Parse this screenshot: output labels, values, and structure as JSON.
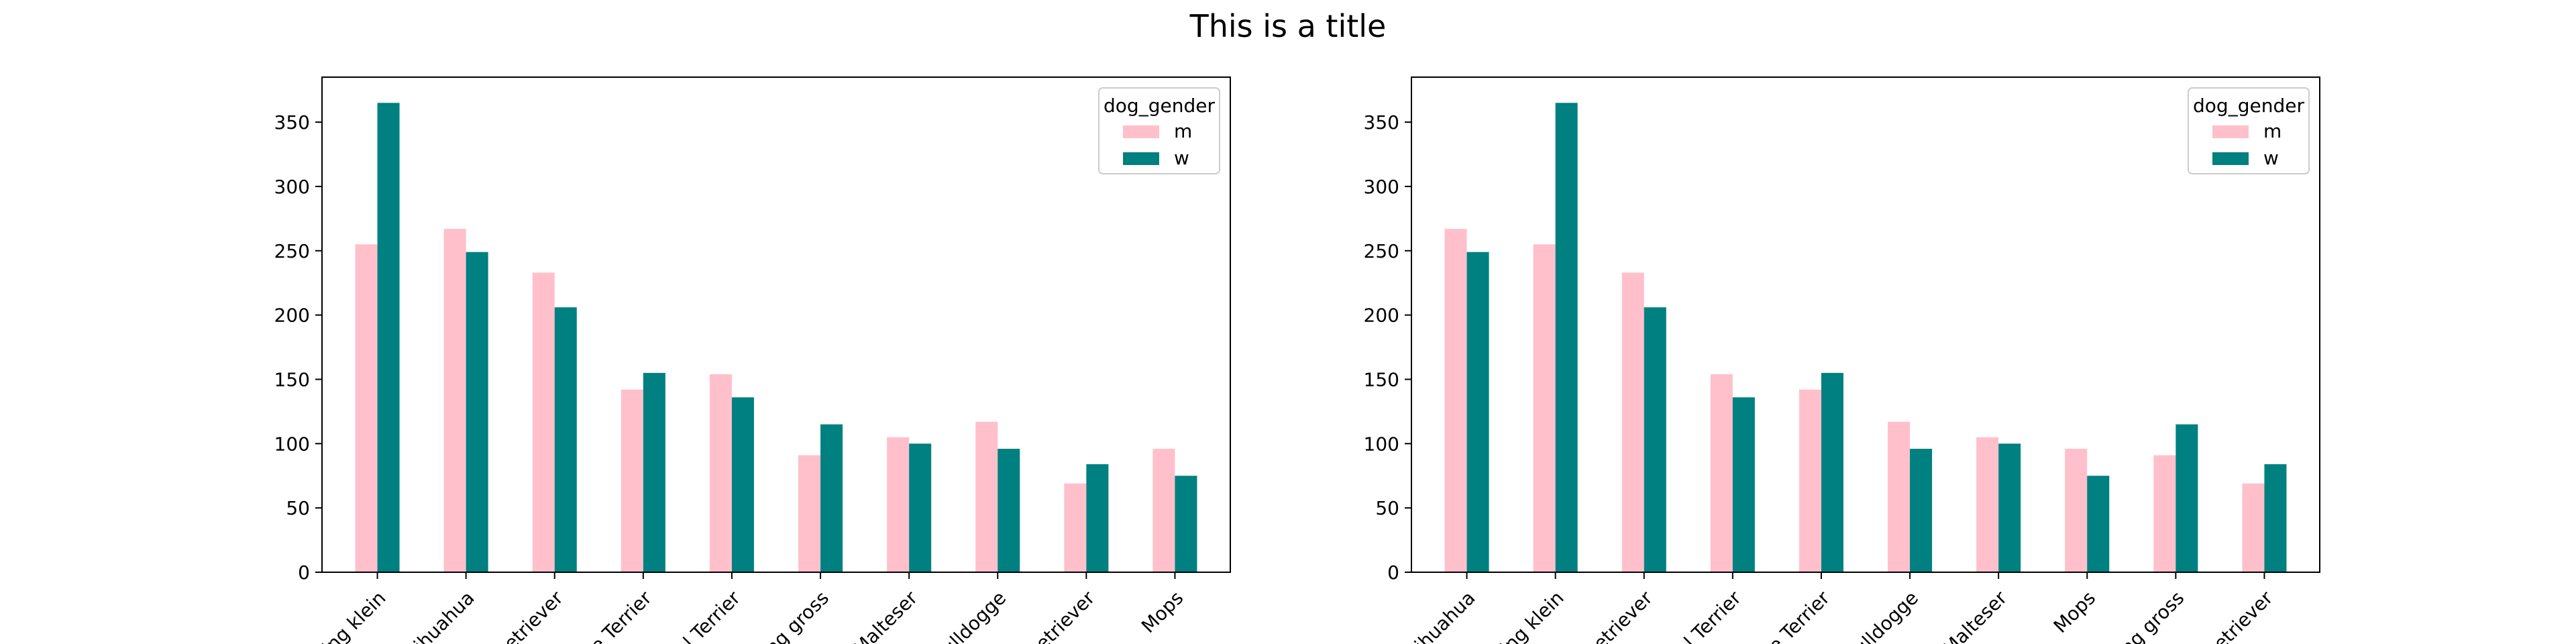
{
  "figure": {
    "title": "This is a title"
  },
  "chart_data": [
    {
      "type": "bar",
      "title": "",
      "xlabel": "",
      "ylabel": "",
      "ylim": [
        0,
        385
      ],
      "yticks": [
        0,
        50,
        100,
        150,
        200,
        250,
        300,
        350
      ],
      "categories": [
        "ling klein",
        "Chihuahua",
        "Retriever",
        "ire Terrier",
        "cel Terrier",
        "ling gross",
        "Malteser",
        "Bulldogge",
        "Retriever",
        "Mops"
      ],
      "legend": {
        "title": "dog_gender",
        "position": "top-right"
      },
      "series": [
        {
          "name": "m",
          "color": "#ffc0cb",
          "values": [
            255,
            267,
            233,
            142,
            154,
            91,
            105,
            117,
            69,
            96
          ]
        },
        {
          "name": "w",
          "color": "#008080",
          "values": [
            365,
            249,
            206,
            155,
            136,
            115,
            100,
            96,
            84,
            75
          ]
        }
      ]
    },
    {
      "type": "bar",
      "title": "",
      "xlabel": "",
      "ylabel": "",
      "ylim": [
        0,
        385
      ],
      "yticks": [
        0,
        50,
        100,
        150,
        200,
        250,
        300,
        350
      ],
      "categories": [
        "Chihuahua",
        "ling klein",
        "Retriever",
        "cel Terrier",
        "ire Terrier",
        "Bulldogge",
        "Malteser",
        "Mops",
        "ling gross",
        "Retriever"
      ],
      "legend": {
        "title": "dog_gender",
        "position": "top-right"
      },
      "series": [
        {
          "name": "m",
          "color": "#ffc0cb",
          "values": [
            267,
            255,
            233,
            154,
            142,
            117,
            105,
            96,
            91,
            69
          ]
        },
        {
          "name": "w",
          "color": "#008080",
          "values": [
            249,
            365,
            206,
            136,
            155,
            96,
            100,
            75,
            115,
            84
          ]
        }
      ]
    }
  ]
}
